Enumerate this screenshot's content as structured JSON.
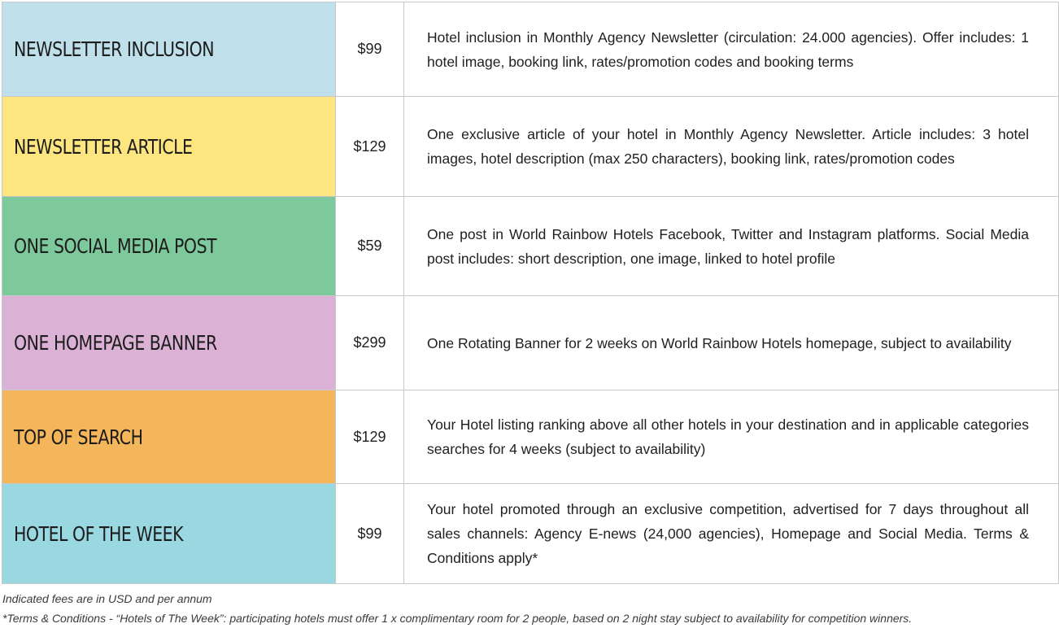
{
  "rows": [
    {
      "name": "NEWSLETTER INCLUSION",
      "price": "$99",
      "description": "Hotel inclusion in Monthly Agency Newsletter (circulation: 24.000 agencies). Offer includes: 1 hotel image, booking link, rates/promotion codes and booking terms",
      "color": "#bfe0ea"
    },
    {
      "name": "NEWSLETTER ARTICLE",
      "price": "$129",
      "description": "One exclusive article of your hotel in Monthly Agency Newsletter. Article includes: 3 hotel images, hotel description (max 250 characters), booking link, rates/promotion codes",
      "color": "#fde680"
    },
    {
      "name": "ONE SOCIAL MEDIA POST",
      "price": "$59",
      "description": "One post in World Rainbow Hotels Facebook, Twitter and Instagram platforms. Social Media post includes: short description, one image, linked to hotel profile",
      "color": "#7ec99b"
    },
    {
      "name": "ONE HOMEPAGE BANNER",
      "price": "$299",
      "description": "One Rotating Banner for 2 weeks on World Rainbow Hotels homepage, subject to availability",
      "color": "#dbb2d5"
    },
    {
      "name": "TOP OF SEARCH",
      "price": "$129",
      "description": "Your Hotel listing ranking above all other hotels in your destination and in applicable categories searches for 4 weeks (subject to availability)",
      "color": "#f4b65a"
    },
    {
      "name": "HOTEL OF THE WEEK",
      "price": "$99",
      "description": "Your hotel promoted through an exclusive competition, advertised for 7 days throughout all sales channels: Agency E-news (24,000 agencies), Homepage and Social Media. Terms & Conditions apply*",
      "color": "#99d7e1"
    }
  ],
  "footnotes": {
    "fees": "Indicated fees are in USD and per annum",
    "terms": "*Terms & Conditions - “Hotels of The Week”: participating hotels must offer 1 x complimentary room for 2 people, based on 2 night stay subject to availability for competition winners."
  }
}
